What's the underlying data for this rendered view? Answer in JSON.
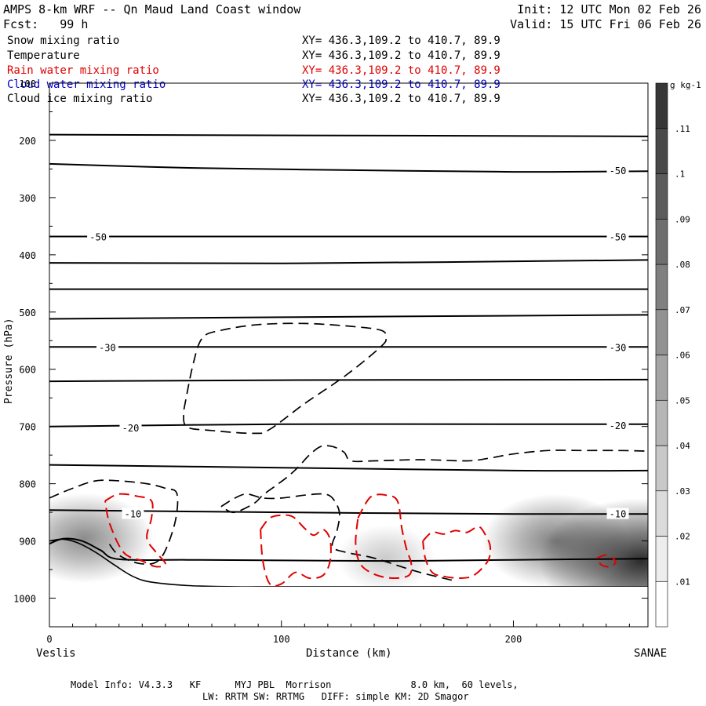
{
  "header": {
    "title": "AMPS 8-km WRF -- Qn Maud Land Coast window",
    "forecast": "Fcst:   99 h",
    "init": "Init: 12 UTC Mon 02 Feb 26",
    "valid": "Valid: 15 UTC Fri 06 Feb 26"
  },
  "legend": [
    {
      "label": "Snow mixing ratio",
      "xy": "XY= 436.3,109.2 to 410.7, 89.9",
      "color": "#000000"
    },
    {
      "label": "Temperature",
      "xy": "XY= 436.3,109.2 to 410.7, 89.9",
      "color": "#000000"
    },
    {
      "label": "Rain water mixing ratio",
      "xy": "XY= 436.3,109.2 to 410.7, 89.9",
      "color": "#e00000"
    },
    {
      "label": "Cloud water mixing ratio",
      "xy": "XY= 436.3,109.2 to 410.7, 89.9",
      "color": "#0000c8"
    },
    {
      "label": "Cloud ice mixing ratio",
      "xy": "XY= 436.3,109.2 to 410.7, 89.9",
      "color": "#000000"
    }
  ],
  "chart_data": {
    "type": "cross-section",
    "xlabel": "Distance (km)",
    "ylabel": "Pressure (hPa)",
    "xlim": [
      0,
      258
    ],
    "ylim": [
      1050,
      100
    ],
    "x_ticks": [
      0,
      100,
      200
    ],
    "y_ticks": [
      100,
      200,
      300,
      400,
      500,
      600,
      700,
      800,
      900,
      1000
    ],
    "y_tick_labels": [
      "100",
      "200",
      "300",
      "400",
      "500",
      "600",
      "700",
      "800",
      "900",
      "1000"
    ],
    "left_endpoint": "Veslis",
    "right_endpoint": "SANAE",
    "isotherm_labels": [
      {
        "text": "-50",
        "x": 245,
        "p": 252
      },
      {
        "text": "-50",
        "x": 21,
        "p": 368
      },
      {
        "text": "-50",
        "x": 245,
        "p": 368
      },
      {
        "text": "-30",
        "x": 25,
        "p": 561
      },
      {
        "text": "-30",
        "x": 245,
        "p": 561
      },
      {
        "text": "-20",
        "x": 35,
        "p": 702
      },
      {
        "text": "-20",
        "x": 245,
        "p": 698
      },
      {
        "text": "-10",
        "x": 36,
        "p": 852
      },
      {
        "text": "-10",
        "x": 245,
        "p": 852
      }
    ],
    "temperature_contours": [
      {
        "x": [
          0,
          258
        ],
        "p": [
          190,
          193
        ]
      },
      {
        "x": [
          0,
          60,
          130,
          200,
          258
        ],
        "p": [
          241,
          248,
          252,
          255,
          254
        ]
      },
      {
        "x": [
          0,
          258
        ],
        "p": [
          368,
          368
        ]
      },
      {
        "x": [
          0,
          100,
          258
        ],
        "p": [
          414,
          415,
          409
        ]
      },
      {
        "x": [
          0,
          258
        ],
        "p": [
          460,
          460
        ]
      },
      {
        "x": [
          0,
          100,
          258
        ],
        "p": [
          512,
          509,
          505
        ]
      },
      {
        "x": [
          0,
          258
        ],
        "p": [
          561,
          561
        ]
      },
      {
        "x": [
          0,
          100,
          258
        ],
        "p": [
          621,
          619,
          618
        ]
      },
      {
        "x": [
          0,
          100,
          200,
          258
        ],
        "p": [
          700,
          696,
          696,
          696
        ]
      },
      {
        "x": [
          0,
          100,
          200,
          258
        ],
        "p": [
          767,
          772,
          777,
          777
        ]
      },
      {
        "x": [
          0,
          100,
          200,
          258
        ],
        "p": [
          846,
          850,
          853,
          853
        ]
      },
      {
        "x": [
          0,
          6,
          14,
          22,
          30,
          60,
          100,
          150,
          200,
          258
        ],
        "p": [
          905,
          896,
          900,
          916,
          932,
          933,
          934,
          935,
          933,
          931
        ]
      }
    ],
    "terrain": {
      "x": [
        0,
        6,
        12,
        20,
        28,
        36,
        44,
        60,
        80,
        100,
        150,
        200,
        258
      ],
      "p": [
        900,
        897,
        903,
        920,
        942,
        962,
        972,
        978,
        980,
        980,
        980,
        980,
        980
      ]
    },
    "snow_maxima_g_per_kg": [
      {
        "x": 15,
        "p": 895,
        "value": 0.055
      },
      {
        "x": 145,
        "p": 930,
        "value": 0.025
      },
      {
        "x": 218,
        "p": 900,
        "value": 0.06
      },
      {
        "x": 255,
        "p": 935,
        "value": 0.1
      }
    ],
    "cloud_ice_contours": [
      {
        "x": [
          58,
          62,
          66,
          74,
          90,
          110,
          130,
          143,
          145,
          143,
          128,
          110,
          95,
          88,
          70,
          59,
          58
        ],
        "p": [
          670,
          590,
          545,
          532,
          522,
          520,
          525,
          532,
          545,
          560,
          610,
          660,
          705,
          712,
          707,
          700,
          670
        ]
      },
      {
        "x": [
          0,
          10,
          20,
          30,
          42,
          50,
          55,
          54,
          48,
          40,
          30,
          25
        ],
        "p": [
          825,
          808,
          795,
          795,
          800,
          808,
          818,
          870,
          930,
          940,
          925,
          900
        ]
      },
      {
        "x": [
          74,
          80,
          85,
          92,
          100,
          110,
          118,
          122,
          125,
          124,
          122,
          128,
          140,
          158,
          175
        ],
        "p": [
          840,
          825,
          818,
          825,
          825,
          820,
          818,
          825,
          850,
          882,
          910,
          920,
          930,
          953,
          970
        ]
      },
      {
        "x": [
          76,
          80,
          88,
          92,
          97,
          102,
          107,
          112,
          117,
          122,
          127,
          130,
          140,
          160,
          180,
          190,
          200,
          215,
          230,
          245,
          258
        ],
        "p": [
          845,
          850,
          835,
          820,
          805,
          790,
          772,
          750,
          735,
          735,
          745,
          760,
          760,
          758,
          760,
          755,
          748,
          742,
          742,
          742,
          743
        ]
      }
    ],
    "rain_contours": [
      {
        "x": [
          24,
          30,
          38,
          44,
          44,
          42,
          46,
          50,
          46,
          40,
          32,
          26,
          24
        ],
        "p": [
          830,
          818,
          822,
          830,
          860,
          895,
          920,
          940,
          945,
          935,
          920,
          870,
          830
        ]
      },
      {
        "x": [
          91,
          95,
          100,
          105,
          110,
          114,
          118,
          121,
          121,
          118,
          112,
          106,
          100,
          95,
          92,
          91
        ],
        "p": [
          880,
          860,
          855,
          858,
          878,
          890,
          880,
          898,
          935,
          960,
          965,
          955,
          975,
          975,
          935,
          880
        ]
      },
      {
        "x": [
          133,
          137,
          140,
          145,
          150,
          152,
          154,
          156,
          155,
          148,
          140,
          134,
          132,
          133
        ],
        "p": [
          860,
          830,
          820,
          820,
          830,
          880,
          915,
          940,
          960,
          965,
          958,
          940,
          905,
          860
        ]
      },
      {
        "x": [
          161,
          165,
          170,
          175,
          180,
          185,
          188,
          190,
          189,
          183,
          177,
          170,
          165,
          162,
          161
        ],
        "p": [
          900,
          885,
          888,
          882,
          885,
          875,
          890,
          910,
          935,
          960,
          965,
          962,
          955,
          930,
          900
        ]
      },
      {
        "x": [
          236,
          240,
          244,
          242,
          238,
          236
        ],
        "p": [
          930,
          925,
          935,
          945,
          942,
          930
        ]
      }
    ]
  },
  "colorbar": {
    "unit": "g kg-1",
    "labels": [
      ".01",
      ".02",
      ".03",
      ".04",
      ".05",
      ".06",
      ".07",
      ".08",
      ".09",
      ".1",
      ".11"
    ]
  },
  "footer": {
    "line1": "Model Info: V4.3.3   KF      MYJ PBL  Morrison              8.0 km,  60 levels,",
    "line2": "LW: RRTM SW: RRTMG   DIFF: simple KM: 2D Smagor"
  }
}
